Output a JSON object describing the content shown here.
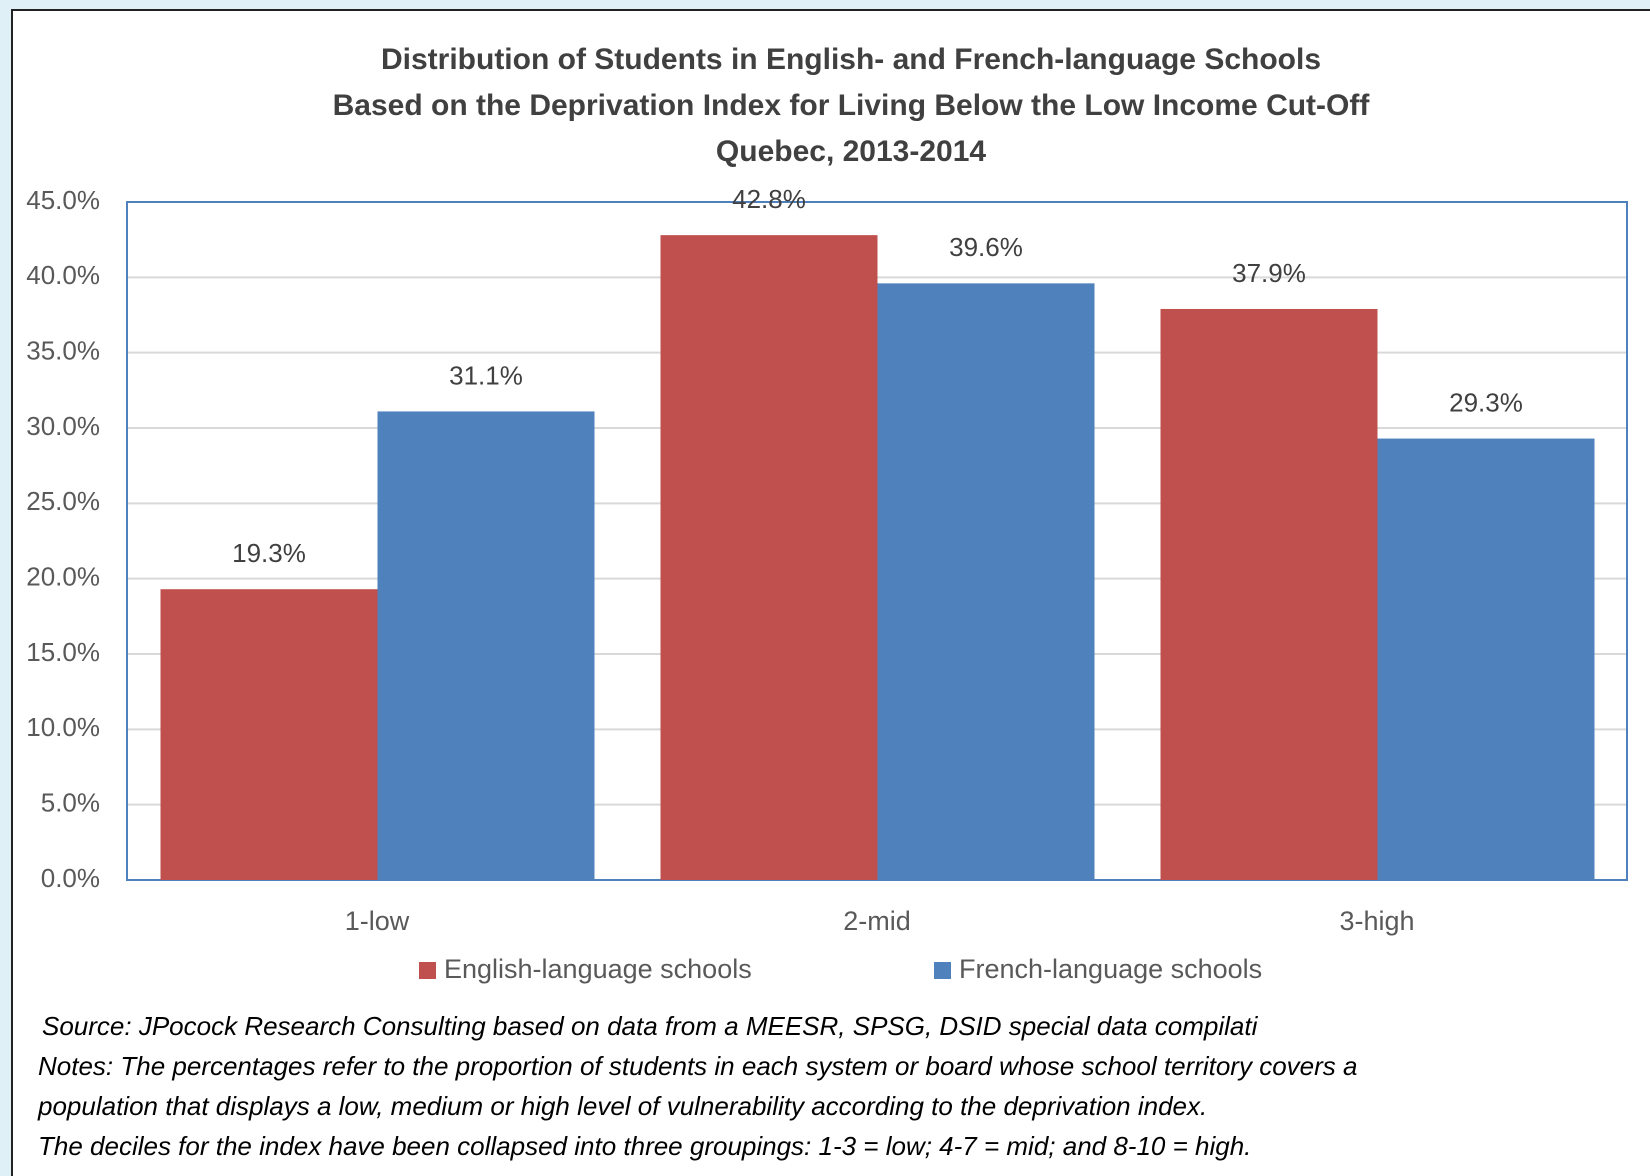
{
  "chart_data": {
    "type": "bar",
    "title": [
      "Distribution of Students in English- and French-language Schools",
      "Based on the Deprivation Index for Living Below the Low Income Cut-Off",
      "Quebec, 2013-2014"
    ],
    "categories": [
      "1-low",
      "2-mid",
      "3-high"
    ],
    "series": [
      {
        "name": "English-language schools",
        "color": "#c0504d",
        "values": [
          19.3,
          42.8,
          37.9
        ],
        "value_labels": [
          "19.3%",
          "42.8%",
          "37.9%"
        ]
      },
      {
        "name": "French-language schools",
        "color": "#4f81bd",
        "values": [
          31.1,
          39.6,
          29.3
        ],
        "value_labels": [
          "31.1%",
          "39.6%",
          "29.3%"
        ]
      }
    ],
    "ylim": [
      0,
      45
    ],
    "yticks": [
      {
        "value": 0,
        "label": "0.0%"
      },
      {
        "value": 5,
        "label": "5.0%"
      },
      {
        "value": 10,
        "label": "10.0%"
      },
      {
        "value": 15,
        "label": "15.0%"
      },
      {
        "value": 20,
        "label": "20.0%"
      },
      {
        "value": 25,
        "label": "25.0%"
      },
      {
        "value": 30,
        "label": "30.0%"
      },
      {
        "value": 35,
        "label": "35.0%"
      },
      {
        "value": 40,
        "label": "40.0%"
      },
      {
        "value": 45,
        "label": "45.0%"
      }
    ],
    "grid": true,
    "legend": "bottom",
    "notes": [
      "Source: JPocock Research Consulting based on data from a MEESR, SPSG, DSID special data compilati",
      "Notes: The percentages refer to the proportion of students in each system or board whose school territory covers a",
      "population that displays a low, medium or high level of vulnerability according to the deprivation index.",
      "The deciles for the index have been collapsed into three groupings:  1-3 = low; 4-7 = mid; and 8-10 = high."
    ]
  }
}
